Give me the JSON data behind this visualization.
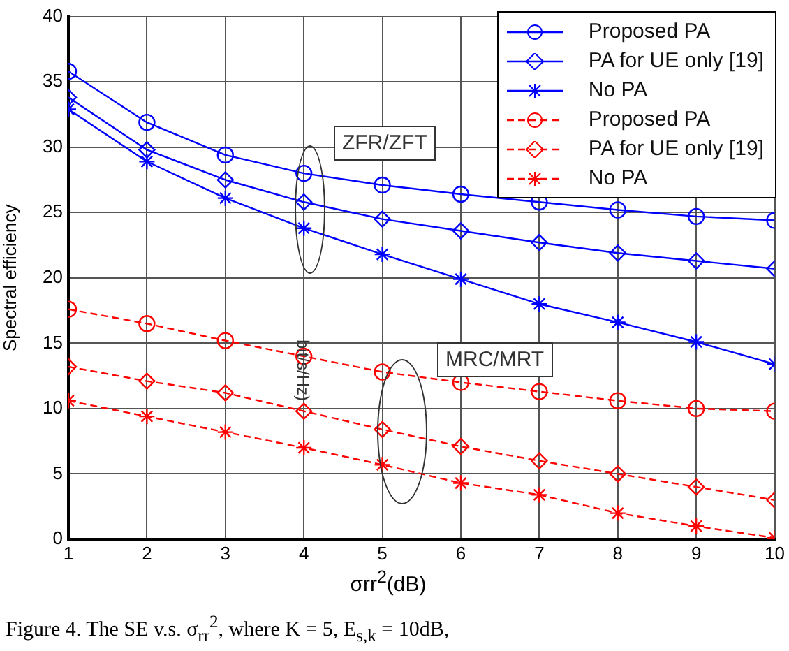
{
  "chart_data": {
    "type": "line",
    "xlabel": "σrr$^{2}$(dB)",
    "ylabel": "Spectral efficiency",
    "x": [
      1,
      2,
      3,
      4,
      5,
      6,
      7,
      8,
      9,
      10
    ],
    "series": [
      {
        "name": "Proposed PA",
        "color": "#0000ff",
        "marker": "circle",
        "line_style": "solid",
        "values": [
          35.8,
          31.9,
          29.4,
          28.0,
          27.1,
          26.4,
          25.8,
          25.2,
          24.7,
          24.4
        ]
      },
      {
        "name": "PA for UE only [19]",
        "color": "#0000ff",
        "marker": "diamond",
        "line_style": "solid",
        "values": [
          33.8,
          29.8,
          27.5,
          25.8,
          24.5,
          23.6,
          22.7,
          21.9,
          21.3,
          20.7
        ]
      },
      {
        "name": "No PA",
        "color": "#0000ff",
        "marker": "cross",
        "line_style": "solid",
        "values": [
          32.9,
          28.9,
          26.1,
          23.8,
          21.8,
          19.9,
          18.0,
          16.6,
          15.1,
          13.4
        ]
      },
      {
        "name": "Proposed PA",
        "color": "#ff0000",
        "marker": "circle",
        "line_style": "dashed",
        "values": [
          17.6,
          16.5,
          15.2,
          14.0,
          12.8,
          12.0,
          11.3,
          10.6,
          10.0,
          9.8
        ]
      },
      {
        "name": "PA for UE only [19]",
        "color": "#ff0000",
        "marker": "diamond",
        "line_style": "dashed",
        "values": [
          13.2,
          12.1,
          11.2,
          9.8,
          8.4,
          7.1,
          6.0,
          5.0,
          4.0,
          3.0
        ]
      },
      {
        "name": "No PA",
        "color": "#ff0000",
        "marker": "cross",
        "line_style": "dashed",
        "values": [
          10.6,
          9.4,
          8.2,
          7.0,
          5.7,
          4.3,
          3.4,
          2.0,
          1.0,
          0.1
        ]
      }
    ],
    "xlim": [
      1,
      10
    ],
    "xticks": [
      1,
      2,
      3,
      4,
      5,
      6,
      7,
      8,
      9,
      10
    ],
    "ylim": [
      0,
      40
    ],
    "yticks": [
      0,
      5,
      10,
      15,
      20,
      25,
      30,
      35,
      40
    ],
    "grid": true,
    "legend": "top right",
    "annotations": [
      "ZFR/ZFT",
      "MRC/MRT",
      "bit/s/Hz)",
      "Figure 4. The SE v.s. σ$_{rr}$$^{2}$, where K = 5, E$_{s,k}$ = 10dB,"
    ]
  }
}
